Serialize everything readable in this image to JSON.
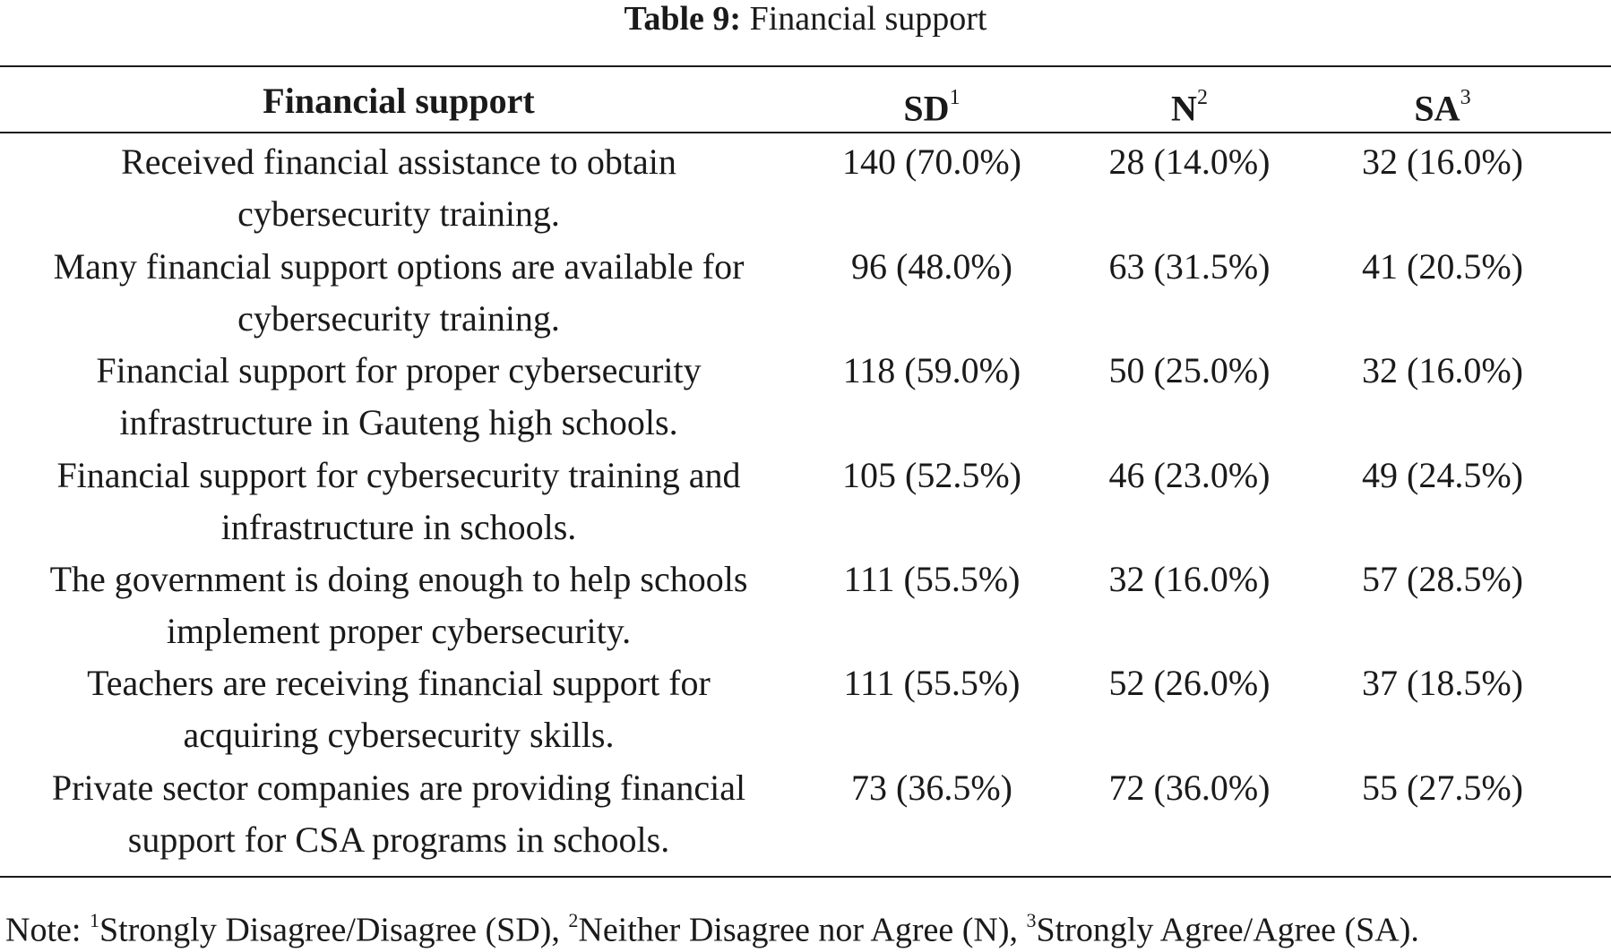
{
  "caption": {
    "label": "Table 9:",
    "title": "Financial support"
  },
  "table": {
    "headers": {
      "item": "Financial support",
      "sd": "SD",
      "sd_sup": "1",
      "n": "N",
      "n_sup": "2",
      "sa": "SA",
      "sa_sup": "3"
    },
    "rows": [
      {
        "line1": "Received financial assistance to obtain",
        "line2": "cybersecurity training.",
        "sd": "140 (70.0%)",
        "n": "28 (14.0%)",
        "sa": "32 (16.0%)"
      },
      {
        "line1": "Many financial support options are available for",
        "line2": "cybersecurity training.",
        "sd": "96 (48.0%)",
        "n": "63 (31.5%)",
        "sa": "41 (20.5%)"
      },
      {
        "line1": "Financial support for proper cybersecurity",
        "line2": "infrastructure in Gauteng high schools.",
        "sd": "118 (59.0%)",
        "n": "50 (25.0%)",
        "sa": "32 (16.0%)"
      },
      {
        "line1": "Financial support for cybersecurity training and",
        "line2": "infrastructure in schools.",
        "sd": "105 (52.5%)",
        "n": "46 (23.0%)",
        "sa": "49 (24.5%)"
      },
      {
        "line1": "The government is doing enough to help schools",
        "line2": "implement proper cybersecurity.",
        "sd": "111 (55.5%)",
        "n": "32 (16.0%)",
        "sa": "57 (28.5%)"
      },
      {
        "line1": "Teachers are receiving financial support for",
        "line2": "acquiring cybersecurity skills.",
        "sd": "111 (55.5%)",
        "n": "52 (26.0%)",
        "sa": "37 (18.5%)"
      },
      {
        "line1": "Private sector companies are providing financial",
        "line2": "support for CSA programs in schools.",
        "sd": "73 (36.5%)",
        "n": "72 (36.0%)",
        "sa": "55 (27.5%)"
      }
    ]
  },
  "note": {
    "prefix": "Note: ",
    "sup1": "1",
    "text1": "Strongly Disagree/Disagree (SD), ",
    "sup2": "2",
    "text2": "Neither Disagree nor Agree (N), ",
    "sup3": "3",
    "text3": "Strongly Agree/Agree (SA)."
  }
}
